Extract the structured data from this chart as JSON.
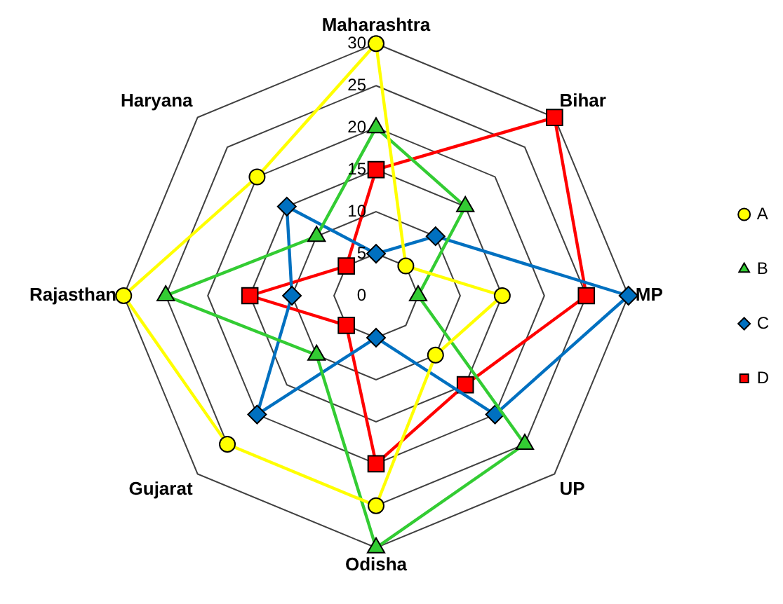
{
  "chart_data": {
    "type": "radar",
    "categories": [
      "Maharashtra",
      "Bihar",
      "MP",
      "UP",
      "Odisha",
      "Gujarat",
      "Rajasthan",
      "Haryana"
    ],
    "series": [
      {
        "name": "A",
        "color": "#ffff00",
        "marker": "circle",
        "values": [
          30,
          5,
          15,
          10,
          25,
          25,
          30,
          20
        ]
      },
      {
        "name": "B",
        "color": "#33cc33",
        "marker": "triangle",
        "values": [
          20,
          15,
          5,
          25,
          30,
          10,
          25,
          10
        ]
      },
      {
        "name": "C",
        "color": "#0070c0",
        "marker": "diamond",
        "values": [
          5,
          10,
          30,
          20,
          5,
          20,
          10,
          15
        ]
      },
      {
        "name": "D",
        "color": "#ff0000",
        "marker": "square",
        "values": [
          15,
          30,
          25,
          15,
          20,
          5,
          15,
          5
        ]
      }
    ],
    "ylim": [
      0,
      30
    ],
    "yticks": [
      0,
      5,
      10,
      15,
      20,
      25,
      30
    ],
    "grid": true,
    "legend": "right",
    "line_style": "solid"
  }
}
